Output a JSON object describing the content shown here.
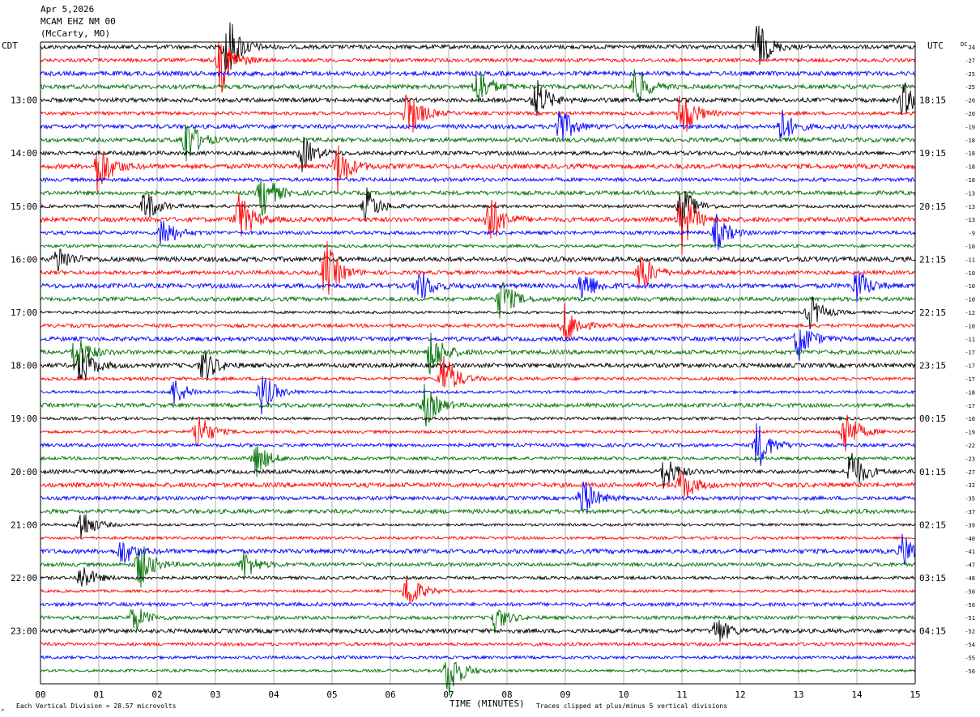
{
  "header": {
    "date": "Apr 5,2026",
    "station": "MCAM EHZ NM 00",
    "location": "(McCarty, MO)"
  },
  "left_zone_label": "CDT",
  "right_zone_label": "UTC",
  "dc_label": "DC",
  "footer": {
    "vertical_division": "Each Vertical Division =   28.57 microvolts",
    "clip_note": "Traces clipped at plus/minus 5 vertical divisions",
    "corner_mark": "↗"
  },
  "colors": {
    "trace_cycle": [
      "#000000",
      "#ff0000",
      "#0000ff",
      "#007000"
    ],
    "grid": "#808080"
  },
  "chart_data": {
    "type": "line",
    "subtype": "helicorder",
    "xlabel": "TIME (MINUTES)",
    "x_ticks": [
      "00",
      "01",
      "02",
      "03",
      "04",
      "05",
      "06",
      "07",
      "08",
      "09",
      "10",
      "11",
      "12",
      "13",
      "14",
      "15"
    ],
    "xlim": [
      0,
      15
    ],
    "minutes_per_trace": 15,
    "trace_count": 48,
    "left_time_labels": [
      "13:00",
      "14:00",
      "15:00",
      "16:00",
      "17:00",
      "18:00",
      "19:00",
      "20:00",
      "21:00",
      "22:00",
      "23:00"
    ],
    "right_time_labels": [
      "18:15",
      "19:15",
      "20:15",
      "21:15",
      "22:15",
      "23:15",
      "00:15",
      "01:15",
      "02:15",
      "03:15",
      "04:15"
    ],
    "dc_offsets": [
      "24",
      "-27",
      "-25",
      "-25",
      "-20",
      "-20",
      "-19",
      "-18",
      "-18",
      "-18",
      "-18",
      "-13",
      "-13",
      "-13",
      "-9",
      "-10",
      "-11",
      "-10",
      "-10",
      "-10",
      "-12",
      "-10",
      "-11",
      "-17",
      "-17",
      "-17",
      "-18",
      "-17",
      "-16",
      "-19",
      "-22",
      "-23",
      "-27",
      "-32",
      "-35",
      "-37",
      "-39",
      "-40",
      "-41",
      "-47",
      "-48",
      "-50",
      "-50",
      "-51",
      "-52",
      "-54",
      "-55",
      "-56"
    ],
    "events": [
      {
        "trace": 0,
        "minute": 3.2,
        "amplitude": 5.0
      },
      {
        "trace": 0,
        "minute": 12.3,
        "amplitude": 3.5
      },
      {
        "trace": 1,
        "minute": 3.1,
        "amplitude": 4.5
      },
      {
        "trace": 3,
        "minute": 7.5,
        "amplitude": 3.0
      },
      {
        "trace": 3,
        "minute": 10.2,
        "amplitude": 3.0
      },
      {
        "trace": 4,
        "minute": 8.5,
        "amplitude": 3.0
      },
      {
        "trace": 4,
        "minute": 14.8,
        "amplitude": 2.5
      },
      {
        "trace": 5,
        "minute": 6.3,
        "amplitude": 4.0
      },
      {
        "trace": 5,
        "minute": 11.0,
        "amplitude": 4.0
      },
      {
        "trace": 6,
        "minute": 8.9,
        "amplitude": 3.0
      },
      {
        "trace": 6,
        "minute": 12.7,
        "amplitude": 2.5
      },
      {
        "trace": 7,
        "minute": 2.5,
        "amplitude": 3.5
      },
      {
        "trace": 8,
        "minute": 4.5,
        "amplitude": 2.5
      },
      {
        "trace": 9,
        "minute": 1.0,
        "amplitude": 4.0
      },
      {
        "trace": 9,
        "minute": 5.1,
        "amplitude": 3.5
      },
      {
        "trace": 11,
        "minute": 3.8,
        "amplitude": 3.5
      },
      {
        "trace": 12,
        "minute": 1.8,
        "amplitude": 2.5
      },
      {
        "trace": 12,
        "minute": 5.6,
        "amplitude": 2.5
      },
      {
        "trace": 12,
        "minute": 11.0,
        "amplitude": 3.0
      },
      {
        "trace": 13,
        "minute": 3.4,
        "amplitude": 4.0
      },
      {
        "trace": 13,
        "minute": 7.7,
        "amplitude": 4.0
      },
      {
        "trace": 13,
        "minute": 11.0,
        "amplitude": 4.5
      },
      {
        "trace": 14,
        "minute": 2.1,
        "amplitude": 2.5
      },
      {
        "trace": 14,
        "minute": 11.6,
        "amplitude": 2.5
      },
      {
        "trace": 16,
        "minute": 0.3,
        "amplitude": 2.0
      },
      {
        "trace": 17,
        "minute": 4.9,
        "amplitude": 4.5
      },
      {
        "trace": 17,
        "minute": 10.3,
        "amplitude": 3.0
      },
      {
        "trace": 18,
        "minute": 6.5,
        "amplitude": 2.5
      },
      {
        "trace": 18,
        "minute": 9.3,
        "amplitude": 2.5
      },
      {
        "trace": 18,
        "minute": 14.0,
        "amplitude": 2.5
      },
      {
        "trace": 19,
        "minute": 7.9,
        "amplitude": 3.0
      },
      {
        "trace": 20,
        "minute": 13.2,
        "amplitude": 2.5
      },
      {
        "trace": 21,
        "minute": 9.0,
        "amplitude": 3.0
      },
      {
        "trace": 22,
        "minute": 13.0,
        "amplitude": 3.0
      },
      {
        "trace": 23,
        "minute": 0.6,
        "amplitude": 3.0
      },
      {
        "trace": 23,
        "minute": 6.7,
        "amplitude": 3.5
      },
      {
        "trace": 24,
        "minute": 0.7,
        "amplitude": 3.0
      },
      {
        "trace": 24,
        "minute": 2.8,
        "amplitude": 2.5
      },
      {
        "trace": 25,
        "minute": 6.9,
        "amplitude": 4.0
      },
      {
        "trace": 26,
        "minute": 2.3,
        "amplitude": 2.0
      },
      {
        "trace": 26,
        "minute": 3.8,
        "amplitude": 3.0
      },
      {
        "trace": 27,
        "minute": 6.6,
        "amplitude": 3.0
      },
      {
        "trace": 29,
        "minute": 2.7,
        "amplitude": 3.0
      },
      {
        "trace": 29,
        "minute": 13.8,
        "amplitude": 3.5
      },
      {
        "trace": 30,
        "minute": 12.3,
        "amplitude": 3.5
      },
      {
        "trace": 31,
        "minute": 3.7,
        "amplitude": 2.5
      },
      {
        "trace": 32,
        "minute": 10.7,
        "amplitude": 2.5
      },
      {
        "trace": 32,
        "minute": 13.9,
        "amplitude": 3.5
      },
      {
        "trace": 33,
        "minute": 11.0,
        "amplitude": 2.5
      },
      {
        "trace": 34,
        "minute": 9.3,
        "amplitude": 3.0
      },
      {
        "trace": 36,
        "minute": 0.7,
        "amplitude": 2.5
      },
      {
        "trace": 38,
        "minute": 1.4,
        "amplitude": 2.0
      },
      {
        "trace": 38,
        "minute": 14.8,
        "amplitude": 2.5
      },
      {
        "trace": 39,
        "minute": 1.7,
        "amplitude": 3.5
      },
      {
        "trace": 39,
        "minute": 3.5,
        "amplitude": 2.0
      },
      {
        "trace": 40,
        "minute": 0.7,
        "amplitude": 2.0
      },
      {
        "trace": 41,
        "minute": 6.3,
        "amplitude": 3.0
      },
      {
        "trace": 43,
        "minute": 1.6,
        "amplitude": 2.0
      },
      {
        "trace": 43,
        "minute": 7.8,
        "amplitude": 2.0
      },
      {
        "trace": 44,
        "minute": 11.6,
        "amplitude": 2.0
      },
      {
        "trace": 47,
        "minute": 7.0,
        "amplitude": 4.0
      }
    ]
  }
}
